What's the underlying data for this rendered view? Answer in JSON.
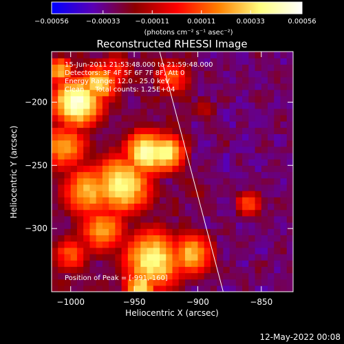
{
  "chart_data": {
    "type": "heatmap",
    "title": "Reconstructed RHESSI Image",
    "xlabel": "Heliocentric X (arcsec)",
    "ylabel": "Heliocentric Y (arcsec)",
    "xlim": [
      -1015,
      -825
    ],
    "ylim": [
      -350,
      -160
    ],
    "x_ticks": [
      -1000,
      -950,
      -900,
      -850
    ],
    "y_ticks": [
      -200,
      -250,
      -300
    ],
    "x_tick_labels": [
      "−1000",
      "−950",
      "−900",
      "−850"
    ],
    "y_tick_labels": [
      "−200",
      "−250",
      "−300"
    ],
    "colorbar": {
      "range": [
        -0.00056,
        0.00056
      ],
      "ticks": [
        -0.00056,
        -0.00033,
        -0.00011,
        0.00011,
        0.00033,
        0.00056
      ],
      "tick_labels": [
        "−0.00056",
        "−0.00033",
        "−0.00011",
        "0.00011",
        "0.00033",
        "0.00056"
      ],
      "unit_label": "(photons cm⁻² s⁻¹ asec⁻²)",
      "colors": [
        "#0000ff",
        "#5a00b4",
        "#8c0000",
        "#ff0000",
        "#ff8000",
        "#ffff80",
        "#ffffff"
      ]
    },
    "annotations": [
      "15-Jun-2011 21:53:48.000 to 21:59:48.000",
      "Detectors: 3F 4F 5F 6F 7F 8F, Att 0",
      "Energy Range: 12.0 - 25.0 keV",
      "Clean     Total counts: 1.25E+04"
    ],
    "peak_label": "Position of Peak = [-991,-160]",
    "limb_line": [
      [
        -930,
        -160
      ],
      [
        -880,
        -350
      ]
    ],
    "hotspots": [
      {
        "x": -995,
        "y": -200,
        "level": 0.95,
        "r": 18
      },
      {
        "x": -978,
        "y": -185,
        "level": 0.8,
        "r": 14
      },
      {
        "x": -1005,
        "y": -235,
        "level": 0.7,
        "r": 18
      },
      {
        "x": -985,
        "y": -270,
        "level": 0.75,
        "r": 20
      },
      {
        "x": -960,
        "y": -265,
        "level": 0.85,
        "r": 22
      },
      {
        "x": -940,
        "y": -240,
        "level": 0.9,
        "r": 16
      },
      {
        "x": -925,
        "y": -240,
        "level": 0.85,
        "r": 14
      },
      {
        "x": -975,
        "y": -300,
        "level": 0.7,
        "r": 18
      },
      {
        "x": -935,
        "y": -325,
        "level": 0.85,
        "r": 22
      },
      {
        "x": -905,
        "y": -320,
        "level": 0.75,
        "r": 16
      },
      {
        "x": -1000,
        "y": -320,
        "level": 0.6,
        "r": 14
      },
      {
        "x": -965,
        "y": -175,
        "level": 0.55,
        "r": 14
      },
      {
        "x": -920,
        "y": -180,
        "level": 0.6,
        "r": 14
      },
      {
        "x": -1008,
        "y": -175,
        "level": 0.75,
        "r": 10
      },
      {
        "x": -945,
        "y": -345,
        "level": 0.8,
        "r": 12
      },
      {
        "x": -860,
        "y": -280,
        "level": 0.6,
        "r": 10
      },
      {
        "x": -895,
        "y": -205,
        "level": 0.4,
        "r": 10
      },
      {
        "x": -900,
        "y": -270,
        "level": 0.35,
        "r": 12
      }
    ]
  },
  "footer": {
    "timestamp": "12-May-2022 00:08"
  }
}
